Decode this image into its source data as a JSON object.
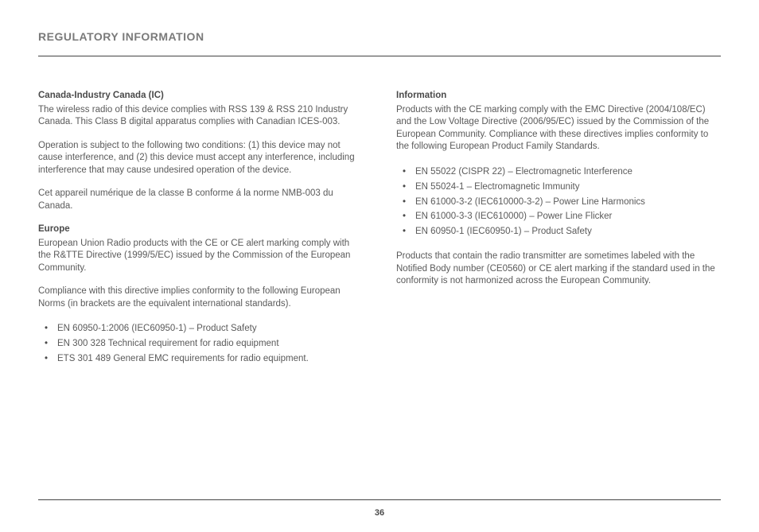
{
  "header": {
    "title": "REGULATORY INFORMATION"
  },
  "left": {
    "h_canada": "Canada-Industry Canada (IC)",
    "p_canada_1": "The wireless radio of this device complies with RSS 139 & RSS 210 Industry Canada. This Class B digital apparatus complies with Canadian ICES-003.",
    "p_canada_2": "Operation is subject to the following two conditions: (1) this device may not cause interference, and (2) this device must accept any interference, including interference that may cause undesired operation of the device.",
    "p_canada_3": "Cet appareil numérique de la classe B conforme á la norme NMB-003 du Canada.",
    "h_europe": "Europe",
    "p_europe_1": "European Union Radio products with the CE or CE alert marking comply with the R&TTE Directive (1999/5/EC) issued by the Commission of the European Community.",
    "p_europe_2": "Compliance with this directive implies conformity to the following European Norms (in brackets are the equivalent international standards).",
    "li1": "EN 60950-1:2006 (IEC60950-1) – Product Safety",
    "li2": "EN 300 328 Technical requirement for radio equipment",
    "li3": "ETS 301 489 General EMC requirements for radio equipment."
  },
  "right": {
    "h_info": "Information",
    "p_info_1": "Products with the CE marking comply with the EMC Directive (2004/108/EC) and the Low Voltage Directive (2006/95/EC) issued by the Commission of the European Community. Compliance with these directives implies conformity to the following European Product Family Standards.",
    "li1": "EN 55022 (CISPR 22) – Electromagnetic Interference",
    "li2": "EN 55024-1 – Electromagnetic Immunity",
    "li3": "EN 61000-3-2 (IEC610000-3-2) – Power Line Harmonics",
    "li4": "EN 61000-3-3 (IEC610000) – Power Line Flicker",
    "li5": "EN 60950-1 (IEC60950-1) – Product Safety",
    "p_info_2": "Products that contain the radio transmitter are sometimes labeled with the Notified Body number (CE0560) or CE alert marking if the standard used in the conformity is not harmonized across the European Community."
  },
  "footer": {
    "page_number": "36"
  }
}
